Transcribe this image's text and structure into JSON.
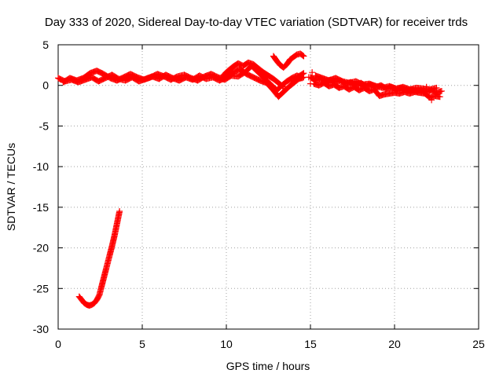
{
  "chart_data": {
    "type": "scatter",
    "title": "Day 333 of 2020, Sidereal Day-to-day VTEC variation (SDTVAR) for receiver trds",
    "xlabel": "GPS time / hours",
    "ylabel": "SDTVAR / TECUs",
    "xlim": [
      0,
      25
    ],
    "ylim": [
      -30,
      5
    ],
    "xticks": [
      0,
      5,
      10,
      15,
      20,
      25
    ],
    "yticks": [
      -30,
      -25,
      -20,
      -15,
      -10,
      -5,
      0,
      5
    ],
    "xtick_labels": [
      "0",
      "5",
      "10",
      "15",
      "20",
      "25"
    ],
    "ytick_labels": [
      "-30",
      "-25",
      "-20",
      "-15",
      "-10",
      "-5",
      "0",
      "5"
    ],
    "grid": true,
    "marker": "+",
    "series": [
      {
        "name": "SDTVAR",
        "color": "#ff0000",
        "segments": [
          [
            [
              1.25,
              -26.0
            ],
            [
              1.4,
              -26.4
            ],
            [
              1.55,
              -26.8
            ],
            [
              1.7,
              -27.0
            ],
            [
              1.85,
              -27.1
            ],
            [
              2.0,
              -27.0
            ],
            [
              2.15,
              -26.8
            ],
            [
              2.3,
              -26.4
            ],
            [
              2.45,
              -25.8
            ],
            [
              2.6,
              -24.6
            ],
            [
              2.75,
              -23.4
            ],
            [
              2.9,
              -22.2
            ],
            [
              3.05,
              -21.0
            ],
            [
              3.2,
              -19.8
            ],
            [
              3.35,
              -18.5
            ],
            [
              3.5,
              -17.0
            ],
            [
              3.65,
              -15.5
            ]
          ],
          [
            [
              0.0,
              0.9
            ],
            [
              0.4,
              0.5
            ],
            [
              0.8,
              0.7
            ],
            [
              1.2,
              0.4
            ],
            [
              1.6,
              0.7
            ],
            [
              2.0,
              1.0
            ],
            [
              2.4,
              0.5
            ],
            [
              2.8,
              0.9
            ],
            [
              3.2,
              1.3
            ],
            [
              3.6,
              0.8
            ],
            [
              4.0,
              0.6
            ],
            [
              4.4,
              1.0
            ],
            [
              4.8,
              0.5
            ],
            [
              5.2,
              0.8
            ],
            [
              5.6,
              1.1
            ],
            [
              6.0,
              0.8
            ],
            [
              6.4,
              1.3
            ],
            [
              6.8,
              0.9
            ],
            [
              7.2,
              0.6
            ],
            [
              7.6,
              1.0
            ],
            [
              8.0,
              0.7
            ],
            [
              8.4,
              1.2
            ],
            [
              8.8,
              0.8
            ],
            [
              9.2,
              1.0
            ],
            [
              9.6,
              0.6
            ],
            [
              10.0,
              1.0
            ],
            [
              10.4,
              1.6
            ],
            [
              10.8,
              2.0
            ],
            [
              11.2,
              1.4
            ],
            [
              11.6,
              1.0
            ],
            [
              12.0,
              0.6
            ],
            [
              12.4,
              0.3
            ],
            [
              12.8,
              -0.6
            ],
            [
              13.1,
              -1.4
            ],
            [
              13.4,
              -0.8
            ],
            [
              13.7,
              -0.2
            ],
            [
              14.0,
              0.3
            ],
            [
              14.3,
              0.8
            ],
            [
              14.6,
              1.0
            ]
          ],
          [
            [
              0.3,
              0.4
            ],
            [
              0.7,
              0.9
            ],
            [
              1.1,
              0.6
            ],
            [
              1.5,
              0.9
            ],
            [
              1.9,
              1.5
            ],
            [
              2.3,
              1.8
            ],
            [
              2.7,
              1.4
            ],
            [
              3.1,
              0.9
            ],
            [
              3.5,
              0.6
            ],
            [
              3.9,
              1.0
            ],
            [
              4.3,
              1.4
            ],
            [
              4.7,
              1.0
            ],
            [
              5.1,
              0.7
            ],
            [
              5.5,
              1.0
            ],
            [
              5.9,
              1.4
            ],
            [
              6.3,
              1.1
            ],
            [
              6.7,
              0.7
            ],
            [
              7.1,
              1.1
            ],
            [
              7.5,
              1.3
            ],
            [
              7.9,
              0.9
            ],
            [
              8.3,
              0.6
            ],
            [
              8.7,
              1.1
            ],
            [
              9.1,
              1.4
            ],
            [
              9.5,
              1.0
            ],
            [
              9.9,
              0.7
            ],
            [
              10.3,
              1.2
            ],
            [
              10.7,
              1.1
            ],
            [
              11.1,
              1.6
            ],
            [
              11.5,
              2.4
            ],
            [
              11.8,
              1.8
            ],
            [
              12.1,
              1.2
            ],
            [
              12.4,
              0.6
            ],
            [
              12.7,
              0.0
            ],
            [
              13.0,
              -0.6
            ],
            [
              13.3,
              0.0
            ],
            [
              13.6,
              0.5
            ],
            [
              13.9,
              0.9
            ],
            [
              14.2,
              1.2
            ],
            [
              14.5,
              0.9
            ]
          ],
          [
            [
              9.8,
              1.2
            ],
            [
              10.1,
              1.8
            ],
            [
              10.4,
              2.3
            ],
            [
              10.7,
              2.7
            ],
            [
              11.0,
              2.4
            ],
            [
              11.3,
              2.8
            ],
            [
              11.6,
              2.6
            ],
            [
              11.9,
              2.1
            ],
            [
              12.2,
              1.6
            ],
            [
              12.5,
              1.2
            ],
            [
              12.8,
              0.8
            ],
            [
              13.1,
              0.3
            ],
            [
              13.4,
              -0.2
            ]
          ],
          [
            [
              12.8,
              3.6
            ],
            [
              13.0,
              3.0
            ],
            [
              13.2,
              2.5
            ],
            [
              13.4,
              2.2
            ],
            [
              13.6,
              2.6
            ],
            [
              13.8,
              3.2
            ],
            [
              14.0,
              3.5
            ],
            [
              14.2,
              3.8
            ],
            [
              14.4,
              3.9
            ],
            [
              14.6,
              3.6
            ]
          ],
          [
            [
              15.0,
              1.0
            ],
            [
              15.3,
              0.6
            ],
            [
              15.6,
              0.8
            ],
            [
              15.9,
              0.5
            ],
            [
              16.2,
              0.7
            ],
            [
              16.5,
              0.4
            ],
            [
              16.8,
              0.6
            ],
            [
              17.1,
              0.2
            ],
            [
              17.4,
              0.4
            ],
            [
              17.7,
              0.0
            ],
            [
              18.0,
              0.3
            ],
            [
              18.3,
              -0.1
            ],
            [
              18.6,
              0.1
            ],
            [
              18.9,
              -0.2
            ],
            [
              19.2,
              0.0
            ],
            [
              19.5,
              -0.4
            ],
            [
              19.8,
              -0.2
            ],
            [
              20.1,
              -0.5
            ],
            [
              20.4,
              -0.3
            ],
            [
              20.7,
              -0.6
            ],
            [
              21.0,
              -0.5
            ],
            [
              21.3,
              -0.7
            ],
            [
              21.6,
              -0.6
            ],
            [
              21.9,
              -0.8
            ],
            [
              22.2,
              -0.6
            ],
            [
              22.5,
              -0.9
            ],
            [
              22.8,
              -0.7
            ]
          ],
          [
            [
              15.2,
              0.2
            ],
            [
              15.5,
              0.0
            ],
            [
              15.8,
              0.3
            ],
            [
              16.1,
              -0.1
            ],
            [
              16.4,
              0.1
            ],
            [
              16.7,
              -0.3
            ],
            [
              17.0,
              -0.1
            ],
            [
              17.3,
              -0.5
            ],
            [
              17.6,
              -0.2
            ],
            [
              17.9,
              -0.6
            ],
            [
              18.2,
              -0.3
            ],
            [
              18.5,
              -0.7
            ],
            [
              18.8,
              -0.5
            ],
            [
              19.1,
              -1.3
            ],
            [
              19.4,
              -1.1
            ],
            [
              19.7,
              -1.0
            ],
            [
              20.0,
              -0.9
            ],
            [
              20.3,
              -1.0
            ],
            [
              20.6,
              -0.8
            ],
            [
              20.9,
              -1.0
            ],
            [
              21.2,
              -0.8
            ],
            [
              21.5,
              -0.9
            ],
            [
              21.8,
              -1.0
            ],
            [
              22.1,
              -1.5
            ],
            [
              22.4,
              -1.3
            ],
            [
              22.7,
              -1.4
            ]
          ],
          [
            [
              15.3,
              1.2
            ],
            [
              15.7,
              0.9
            ],
            [
              16.1,
              0.6
            ],
            [
              16.5,
              0.9
            ],
            [
              16.9,
              0.5
            ],
            [
              17.3,
              0.3
            ],
            [
              17.7,
              0.5
            ],
            [
              18.1,
              0.1
            ],
            [
              18.5,
              0.2
            ],
            [
              18.9,
              -0.1
            ],
            [
              19.3,
              -0.3
            ],
            [
              19.7,
              -0.1
            ],
            [
              20.1,
              -0.4
            ],
            [
              20.5,
              -0.2
            ],
            [
              20.9,
              -0.5
            ],
            [
              21.3,
              -0.3
            ],
            [
              21.7,
              -0.4
            ],
            [
              22.1,
              -0.5
            ],
            [
              22.5,
              -0.3
            ]
          ],
          [
            [
              14.0,
              0.4
            ],
            [
              14.3,
              1.1
            ],
            [
              14.6,
              1.5
            ]
          ]
        ],
        "isolated_points": [
          [
            14.9,
            1.0
          ],
          [
            15.0,
            0.2
          ],
          [
            15.1,
            1.6
          ],
          [
            22.2,
            -1.8
          ],
          [
            21.9,
            -0.2
          ]
        ]
      }
    ]
  }
}
